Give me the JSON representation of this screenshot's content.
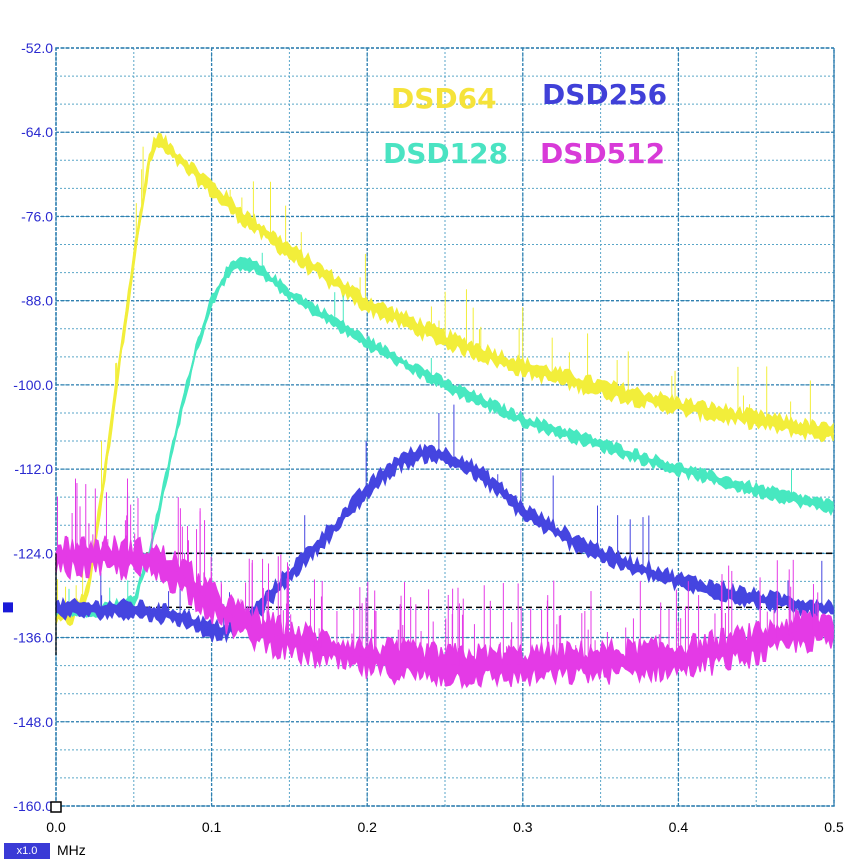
{
  "chart_data": {
    "type": "line",
    "title": "",
    "xlabel": "MHz",
    "ylabel": "",
    "xlim": [
      0.0,
      0.5
    ],
    "ylim": [
      -160.0,
      -52.0
    ],
    "x_ticks": [
      "0.0",
      "0.1",
      "0.2",
      "0.3",
      "0.4",
      "0.5"
    ],
    "y_ticks": [
      "-52.0",
      "-64.0",
      "-76.0",
      "-88.0",
      "-100.0",
      "-112.0",
      "-124.0",
      "-136.0",
      "-148.0",
      "-160.0"
    ],
    "grid": true,
    "legend_position": "top-right",
    "reference_lines_db": [
      -124.0,
      -131.7
    ],
    "series": [
      {
        "name": "DSD64",
        "color": "#f2ee3a",
        "x": [
          0.0,
          0.01,
          0.02,
          0.03,
          0.04,
          0.05,
          0.06,
          0.065,
          0.08,
          0.1,
          0.12,
          0.15,
          0.2,
          0.25,
          0.3,
          0.35,
          0.4,
          0.45,
          0.5
        ],
        "y": [
          -133.0,
          -133.0,
          -130.0,
          -115.0,
          -98.0,
          -82.0,
          -68.0,
          -65.0,
          -68.0,
          -72.0,
          -76.0,
          -81.0,
          -88.5,
          -93.5,
          -97.5,
          -100.5,
          -103.0,
          -105.0,
          -107.0
        ]
      },
      {
        "name": "DSD128",
        "color": "#47e8c0",
        "x": [
          0.0,
          0.03,
          0.05,
          0.06,
          0.07,
          0.08,
          0.09,
          0.1,
          0.11,
          0.12,
          0.13,
          0.15,
          0.2,
          0.25,
          0.3,
          0.35,
          0.4,
          0.45,
          0.5
        ],
        "y": [
          -132.0,
          -132.0,
          -131.0,
          -124.0,
          -114.0,
          -104.0,
          -95.0,
          -88.0,
          -84.0,
          -82.5,
          -83.5,
          -87.0,
          -94.0,
          -100.0,
          -105.0,
          -108.5,
          -112.0,
          -115.0,
          -117.5
        ]
      },
      {
        "name": "DSD256",
        "color": "#4545e0",
        "x": [
          0.0,
          0.05,
          0.08,
          0.1,
          0.11,
          0.13,
          0.15,
          0.18,
          0.2,
          0.22,
          0.24,
          0.26,
          0.28,
          0.3,
          0.33,
          0.36,
          0.4,
          0.45,
          0.5
        ],
        "y": [
          -132.0,
          -132.0,
          -133.0,
          -135.0,
          -135.0,
          -132.0,
          -127.0,
          -120.0,
          -115.0,
          -111.0,
          -109.5,
          -111.0,
          -114.0,
          -118.0,
          -122.0,
          -125.0,
          -128.0,
          -130.5,
          -132.0
        ]
      },
      {
        "name": "DSD512",
        "color": "#e43ae6",
        "x": [
          0.0,
          0.03,
          0.06,
          0.08,
          0.1,
          0.12,
          0.15,
          0.2,
          0.25,
          0.3,
          0.35,
          0.4,
          0.45,
          0.48,
          0.5
        ],
        "y": [
          -124.5,
          -124.5,
          -125.0,
          -127.0,
          -131.0,
          -134.0,
          -136.5,
          -139.0,
          -140.0,
          -140.0,
          -139.5,
          -139.0,
          -137.0,
          -135.0,
          -135.0
        ]
      }
    ]
  },
  "footer": {
    "scale_badge": "x1.0",
    "unit_label": "MHz"
  }
}
